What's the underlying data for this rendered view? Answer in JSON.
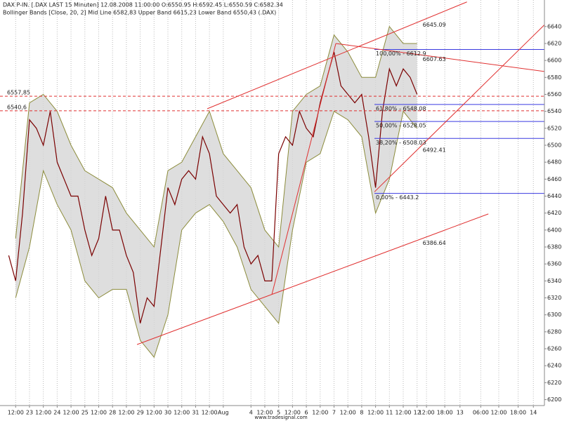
{
  "chart_data": {
    "type": "line",
    "title": "DAX P-IN. [.DAX LAST 15 Minuten] 12.08.2008 11:00:00 O:6550.95 H:6592.45 L:6550.59 C:6582.34",
    "subtitle": "Bollinger Bands [Close, 20, 2] Mid Line 6582,83 Upper Band 6615,23 Lower Band 6550,43 (.DAX)",
    "footer": "www.tradesignal.com",
    "xlim": [
      -0.13,
      39.2
    ],
    "ylim": [
      6193,
      6663
    ],
    "yticks": [
      6200,
      6220,
      6240,
      6260,
      6280,
      6300,
      6320,
      6340,
      6360,
      6380,
      6400,
      6420,
      6440,
      6460,
      6480,
      6500,
      6520,
      6540,
      6560,
      6580,
      6600,
      6620,
      6640
    ],
    "xticks": [
      {
        "value": 1,
        "label": "12:00"
      },
      {
        "value": 2,
        "label": "23"
      },
      {
        "value": 3,
        "label": "12:00"
      },
      {
        "value": 4,
        "label": "24"
      },
      {
        "value": 5,
        "label": "12:00"
      },
      {
        "value": 6,
        "label": "25"
      },
      {
        "value": 7,
        "label": "12:00"
      },
      {
        "value": 8,
        "label": "28"
      },
      {
        "value": 9,
        "label": "12:00"
      },
      {
        "value": 10,
        "label": "29"
      },
      {
        "value": 11,
        "label": "12:00"
      },
      {
        "value": 12,
        "label": "30"
      },
      {
        "value": 13,
        "label": "12:00"
      },
      {
        "value": 14,
        "label": "31"
      },
      {
        "value": 15,
        "label": "12:00"
      },
      {
        "value": 16,
        "label": "Aug"
      },
      {
        "value": 18,
        "label": "4"
      },
      {
        "value": 19,
        "label": "12:00"
      },
      {
        "value": 20,
        "label": "5"
      },
      {
        "value": 21,
        "label": "12:00"
      },
      {
        "value": 22,
        "label": "6"
      },
      {
        "value": 23,
        "label": "12:00"
      },
      {
        "value": 24,
        "label": "7"
      },
      {
        "value": 25,
        "label": "12:00"
      },
      {
        "value": 26,
        "label": "8"
      },
      {
        "value": 27,
        "label": "12:00"
      },
      {
        "value": 28,
        "label": "11"
      },
      {
        "value": 29,
        "label": "12:00"
      },
      {
        "value": 30,
        "label": "12"
      },
      {
        "value": 30.68,
        "label": "12:00"
      },
      {
        "value": 32,
        "label": "18:00"
      },
      {
        "value": 33.1,
        "label": "13"
      },
      {
        "value": 34.6,
        "label": "06:00"
      },
      {
        "value": 35.9,
        "label": "12:00"
      },
      {
        "value": 37.3,
        "label": "18:00"
      },
      {
        "value": 38.4,
        "label": "14"
      }
    ],
    "grid": true,
    "series": [
      {
        "color": "#7a0000",
        "x": [
          0.5,
          1,
          1.5,
          2,
          2.5,
          3,
          3.5,
          4,
          4.5,
          5,
          5.5,
          6,
          6.5,
          7,
          7.5,
          8,
          8.5,
          9,
          9.5,
          10,
          10.5,
          11,
          11.5,
          12,
          12.5,
          13,
          13.5,
          14,
          14.5,
          15,
          15.5,
          16,
          16.5,
          17,
          17.5,
          18,
          18.5,
          19,
          19.5,
          20,
          20.5,
          21,
          21.5,
          22,
          22.5,
          23,
          23.5,
          24,
          24.5,
          25,
          25.5,
          26,
          26.5,
          27,
          27.5,
          28,
          28.5,
          29,
          29.5,
          30
        ],
        "values": [
          6370,
          6340,
          6420,
          6530,
          6520,
          6500,
          6540,
          6480,
          6460,
          6440,
          6440,
          6400,
          6370,
          6390,
          6440,
          6400,
          6400,
          6370,
          6350,
          6290,
          6320,
          6310,
          6380,
          6450,
          6430,
          6460,
          6470,
          6460,
          6510,
          6490,
          6440,
          6430,
          6420,
          6430,
          6380,
          6360,
          6370,
          6340,
          6340,
          6490,
          6510,
          6500,
          6540,
          6520,
          6510,
          6550,
          6580,
          6610,
          6570,
          6560,
          6550,
          6560,
          6510,
          6450,
          6540,
          6590,
          6570,
          6590,
          6580,
          6560
        ]
      },
      {
        "color": "#8c8c3c",
        "x": [
          1,
          2,
          3,
          4,
          5,
          6,
          7,
          8,
          9,
          10,
          11,
          12,
          13,
          14,
          15,
          16,
          17,
          18,
          19,
          20,
          21,
          22,
          23,
          24,
          25,
          26,
          27,
          28,
          29,
          30
        ],
        "values": [
          6390,
          6550,
          6560,
          6540,
          6500,
          6470,
          6460,
          6450,
          6420,
          6400,
          6380,
          6470,
          6480,
          6510,
          6540,
          6490,
          6470,
          6450,
          6400,
          6380,
          6540,
          6560,
          6570,
          6630,
          6610,
          6580,
          6580,
          6640,
          6620,
          6620
        ]
      },
      {
        "color": "#8c8c3c",
        "x": [
          1,
          2,
          3,
          4,
          5,
          6,
          7,
          8,
          9,
          10,
          11,
          12,
          13,
          14,
          15,
          16,
          17,
          18,
          19,
          20,
          21,
          22,
          23,
          24,
          25,
          26,
          27,
          28,
          29,
          30
        ],
        "values": [
          6320,
          6380,
          6470,
          6430,
          6400,
          6340,
          6320,
          6330,
          6330,
          6270,
          6250,
          6300,
          6400,
          6420,
          6430,
          6410,
          6380,
          6330,
          6310,
          6290,
          6400,
          6480,
          6490,
          6540,
          6530,
          6510,
          6420,
          6460,
          6540,
          6520
        ]
      }
    ],
    "hlines": {
      "values": [
        6557.85,
        6540.6
      ],
      "value_labels": [
        "6557,85",
        "6540,6"
      ],
      "color": "#e03030"
    },
    "fibonacci": {
      "x_start": 26.92,
      "color": "#3a3ae0",
      "values": [
        6612.9,
        6548.08,
        6528.05,
        6508.03,
        6443.2
      ],
      "value_labels": [
        "100,00% - 6612.9",
        "61,80% - 6548.08",
        "50,00% - 6528.05",
        "38,20% - 6508.03",
        "0,00% - 6443.2"
      ]
    },
    "trendlines": {
      "color": "#e03030",
      "label_x": 30.3,
      "lines": [
        {
          "x": [
            14.84,
            33.6
          ],
          "y": [
            6543,
            6669
          ],
          "label": 6645.09
        },
        {
          "x": [
            24.13,
            39.2
          ],
          "y": [
            6620,
            6587
          ],
          "label": 6607.63
        },
        {
          "x": [
            26.92,
            39.2
          ],
          "y": [
            6445,
            6642
          ],
          "label": 6492.41
        },
        {
          "x": [
            9.77,
            35.15
          ],
          "y": [
            6265,
            6419
          ],
          "label": 6386.64
        },
        {
          "x": [
            19.51,
            24.13
          ],
          "y": [
            6324,
            6620
          ]
        }
      ]
    }
  }
}
